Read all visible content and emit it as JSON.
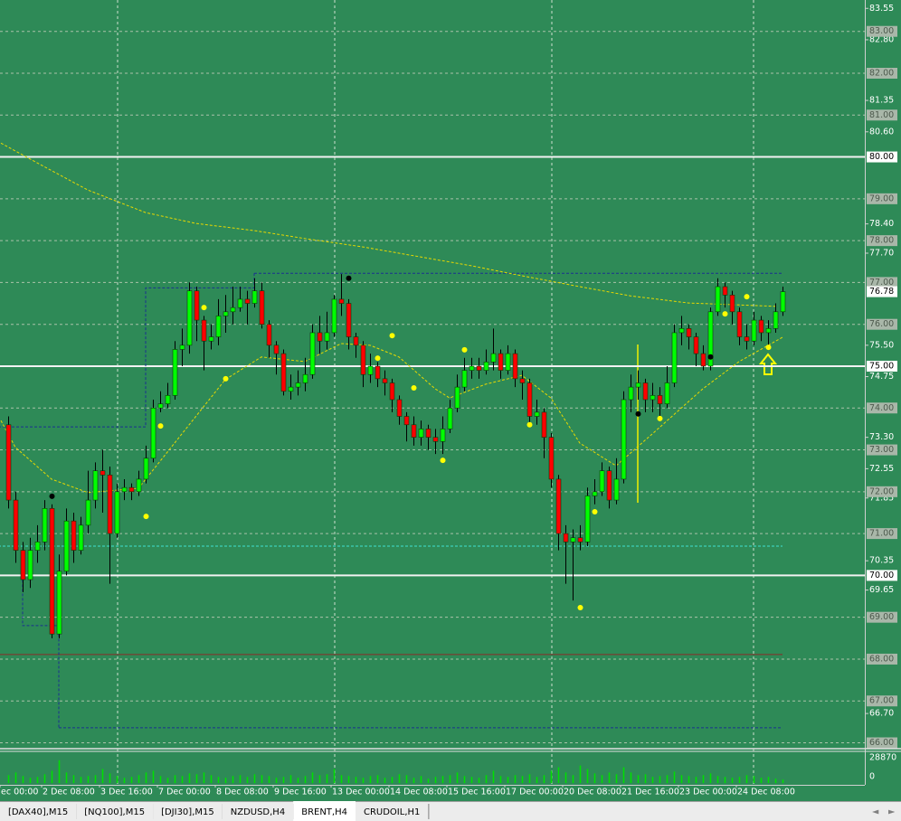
{
  "chart_data": {
    "type": "candlestick",
    "ylim": [
      65.86,
      83.75
    ],
    "yticks": [
      83.55,
      {
        "value": 82.8,
        "label": "82.80"
      },
      81.35,
      {
        "value": 80.6,
        "label": "80.60"
      },
      {
        "value": 78.4,
        "label": "78.40"
      },
      {
        "value": 77.7,
        "label": "77.70"
      },
      {
        "value": 75.5,
        "label": "75.50"
      },
      74.75,
      {
        "value": 73.3,
        "label": "73.30"
      },
      72.55,
      71.85,
      70.35,
      69.65,
      {
        "value": 66.7,
        "label": "66.70"
      }
    ],
    "level_lines": [
      {
        "value": 83,
        "label": "83.00"
      },
      {
        "value": 82,
        "label": "82.00"
      },
      {
        "value": 81,
        "label": "81.00"
      },
      {
        "value": 79,
        "label": "79.00"
      },
      {
        "value": 78,
        "label": "78.00"
      },
      {
        "value": 77,
        "label": "77.00"
      },
      {
        "value": 76,
        "label": "76.00"
      },
      {
        "value": 74,
        "label": "74.00"
      },
      {
        "value": 73,
        "label": "73.00"
      },
      {
        "value": 72,
        "label": "72.00"
      },
      {
        "value": 71,
        "label": "71.00"
      },
      {
        "value": 69,
        "label": "69.00"
      },
      {
        "value": 68,
        "label": "68.00"
      },
      {
        "value": 67,
        "label": "67.00"
      },
      {
        "value": 66,
        "label": "66.00"
      }
    ],
    "key_levels": [
      {
        "value": 80,
        "label": "80.00"
      },
      {
        "value": 75,
        "label": "75.00"
      },
      {
        "value": 70,
        "label": "70.00"
      }
    ],
    "current_price": 76.78,
    "colors": {
      "background": "#2e8a57",
      "bull": "#00ff00",
      "bear": "#ff0000",
      "wick": "#000000",
      "volume": "#00e000",
      "signal": "#ffff00",
      "signal_black": "#000000",
      "ma": "#e8d800",
      "step": "#1a3090"
    },
    "candles": [
      [
        73.6,
        73.8,
        71.6,
        71.8
      ],
      [
        71.8,
        72.0,
        70.3,
        70.6
      ],
      [
        70.6,
        70.8,
        69.6,
        69.9
      ],
      [
        69.9,
        70.9,
        69.7,
        70.6
      ],
      [
        70.6,
        71.2,
        70.3,
        70.8
      ],
      [
        70.8,
        71.8,
        70.6,
        71.6
      ],
      [
        71.6,
        71.7,
        68.5,
        68.6
      ],
      [
        68.6,
        70.5,
        68.5,
        70.1
      ],
      [
        70.1,
        71.6,
        70.0,
        71.3
      ],
      [
        71.3,
        71.5,
        70.3,
        70.6
      ],
      [
        70.6,
        71.4,
        70.5,
        71.2
      ],
      [
        71.2,
        72.5,
        71.0,
        71.8
      ],
      [
        71.8,
        72.7,
        71.6,
        72.5
      ],
      [
        72.5,
        73.0,
        71.5,
        72.4
      ],
      [
        72.4,
        72.6,
        69.8,
        71.0
      ],
      [
        71.0,
        72.2,
        70.9,
        72.0
      ],
      [
        72.0,
        72.3,
        71.8,
        72.1
      ],
      [
        72.1,
        72.2,
        71.8,
        72.0
      ],
      [
        72.0,
        72.5,
        71.9,
        72.3
      ],
      [
        72.3,
        73.1,
        72.2,
        72.8
      ],
      [
        72.8,
        74.2,
        72.7,
        74.0
      ],
      [
        74.0,
        74.4,
        73.9,
        74.1
      ],
      [
        74.1,
        74.6,
        74.0,
        74.3
      ],
      [
        74.3,
        75.6,
        74.2,
        75.4
      ],
      [
        75.4,
        75.9,
        75.0,
        75.5
      ],
      [
        75.5,
        77.0,
        75.3,
        76.8
      ],
      [
        76.8,
        76.9,
        75.6,
        76.1
      ],
      [
        76.1,
        76.2,
        74.9,
        75.6
      ],
      [
        75.6,
        76.0,
        75.4,
        75.7
      ],
      [
        75.7,
        76.6,
        75.5,
        76.2
      ],
      [
        76.2,
        76.7,
        75.8,
        76.3
      ],
      [
        76.3,
        76.9,
        76.0,
        76.4
      ],
      [
        76.4,
        76.9,
        76.3,
        76.6
      ],
      [
        76.6,
        76.8,
        76.0,
        76.5
      ],
      [
        76.5,
        77.1,
        76.4,
        76.8
      ],
      [
        76.8,
        77.0,
        75.9,
        76.0
      ],
      [
        76.0,
        76.1,
        75.2,
        75.5
      ],
      [
        75.5,
        75.6,
        74.8,
        75.3
      ],
      [
        75.3,
        75.4,
        74.3,
        74.4
      ],
      [
        74.4,
        74.8,
        74.2,
        74.5
      ],
      [
        74.5,
        74.9,
        74.3,
        74.6
      ],
      [
        74.6,
        75.2,
        74.4,
        74.8
      ],
      [
        74.8,
        76.0,
        74.7,
        75.8
      ],
      [
        75.8,
        76.2,
        75.3,
        75.6
      ],
      [
        75.6,
        76.3,
        75.4,
        75.8
      ],
      [
        75.8,
        76.7,
        75.7,
        76.6
      ],
      [
        76.6,
        77.2,
        76.2,
        76.5
      ],
      [
        76.5,
        76.6,
        75.4,
        75.7
      ],
      [
        75.7,
        75.8,
        75.2,
        75.5
      ],
      [
        75.5,
        75.6,
        74.5,
        74.8
      ],
      [
        74.8,
        75.3,
        74.6,
        75.0
      ],
      [
        75.0,
        75.1,
        74.5,
        74.7
      ],
      [
        74.7,
        74.9,
        74.3,
        74.6
      ],
      [
        74.6,
        74.7,
        73.9,
        74.2
      ],
      [
        74.2,
        74.3,
        73.6,
        73.8
      ],
      [
        73.8,
        73.9,
        73.2,
        73.6
      ],
      [
        73.6,
        73.8,
        73.1,
        73.3
      ],
      [
        73.3,
        73.7,
        73.1,
        73.5
      ],
      [
        73.5,
        73.6,
        73.0,
        73.3
      ],
      [
        73.3,
        73.5,
        72.9,
        73.2
      ],
      [
        73.2,
        73.8,
        72.9,
        73.5
      ],
      [
        73.5,
        74.2,
        73.4,
        74.0
      ],
      [
        74.0,
        74.8,
        73.9,
        74.5
      ],
      [
        74.5,
        75.2,
        74.4,
        74.9
      ],
      [
        74.9,
        75.2,
        74.7,
        75.0
      ],
      [
        75.0,
        75.2,
        74.7,
        74.9
      ],
      [
        74.9,
        75.4,
        74.8,
        75.1
      ],
      [
        75.1,
        75.9,
        74.9,
        75.3
      ],
      [
        75.3,
        75.4,
        74.7,
        74.9
      ],
      [
        74.9,
        75.5,
        74.8,
        75.3
      ],
      [
        75.3,
        75.4,
        74.5,
        74.7
      ],
      [
        74.7,
        74.9,
        74.2,
        74.6
      ],
      [
        74.6,
        74.7,
        73.6,
        73.8
      ],
      [
        73.8,
        74.2,
        73.6,
        73.9
      ],
      [
        73.9,
        74.0,
        72.8,
        73.3
      ],
      [
        73.3,
        73.4,
        72.1,
        72.3
      ],
      [
        72.3,
        72.4,
        70.6,
        71.0
      ],
      [
        71.0,
        71.2,
        69.8,
        70.8
      ],
      [
        70.8,
        71.1,
        69.4,
        70.9
      ],
      [
        70.9,
        71.2,
        70.6,
        70.8
      ],
      [
        70.8,
        72.1,
        70.7,
        71.9
      ],
      [
        71.9,
        72.3,
        71.7,
        72.0
      ],
      [
        72.0,
        72.7,
        71.9,
        72.5
      ],
      [
        72.5,
        72.6,
        71.6,
        71.8
      ],
      [
        71.8,
        72.8,
        71.7,
        72.3
      ],
      [
        72.3,
        74.4,
        72.2,
        74.2
      ],
      [
        74.2,
        74.8,
        73.9,
        74.5
      ],
      [
        74.5,
        74.9,
        74.2,
        74.6
      ],
      [
        74.6,
        74.7,
        73.9,
        74.2
      ],
      [
        74.2,
        74.6,
        73.9,
        74.3
      ],
      [
        74.3,
        74.5,
        73.8,
        74.1
      ],
      [
        74.1,
        75.0,
        74.0,
        74.6
      ],
      [
        74.6,
        76.0,
        74.5,
        75.8
      ],
      [
        75.8,
        76.2,
        75.5,
        75.9
      ],
      [
        75.9,
        76.0,
        75.4,
        75.7
      ],
      [
        75.7,
        75.8,
        75.0,
        75.3
      ],
      [
        75.3,
        75.5,
        74.9,
        75.0
      ],
      [
        75.0,
        76.4,
        74.9,
        76.3
      ],
      [
        76.3,
        77.1,
        76.2,
        76.9
      ],
      [
        76.9,
        77.0,
        76.4,
        76.7
      ],
      [
        76.7,
        76.8,
        76.0,
        76.3
      ],
      [
        76.3,
        76.4,
        75.5,
        75.7
      ],
      [
        75.7,
        76.0,
        75.4,
        75.6
      ],
      [
        75.6,
        76.3,
        75.5,
        76.1
      ],
      [
        76.1,
        76.2,
        75.6,
        75.8
      ],
      [
        75.8,
        76.1,
        75.5,
        75.9
      ],
      [
        75.9,
        76.5,
        75.8,
        76.3
      ],
      [
        76.3,
        76.9,
        76.2,
        76.78
      ]
    ],
    "xlabels": [
      "ec 00:00",
      "2 Dec 08:00",
      "3 Dec 16:00",
      "7 Dec 00:00",
      "8 Dec 08:00",
      "9 Dec 16:00",
      "13 Dec 00:00",
      "14 Dec 08:00",
      "15 Dec 16:00",
      "17 Dec 00:00",
      "20 Dec 08:00",
      "21 Dec 16:00",
      "23 Dec 00:00",
      "24 Dec 08:00"
    ],
    "ma_slow": {
      "x": [
        -1,
        4,
        11,
        19,
        26,
        34,
        41,
        49,
        56,
        64,
        71,
        79,
        86,
        94,
        106
      ],
      "values": [
        80.33,
        79.86,
        79.21,
        78.67,
        78.41,
        78.24,
        78.05,
        77.85,
        77.64,
        77.4,
        77.16,
        76.9,
        76.68,
        76.51,
        76.43
      ]
    },
    "ma_fast": {
      "x": [
        -1,
        1,
        6,
        11,
        18,
        24,
        30,
        35,
        41,
        46,
        50,
        54,
        59,
        61,
        66,
        71,
        75,
        79,
        84,
        89,
        96,
        101,
        107
      ],
      "values": [
        73.7,
        73.06,
        72.3,
        71.98,
        72.08,
        73.38,
        74.68,
        75.22,
        75.11,
        75.54,
        75.5,
        75.22,
        74.46,
        74.24,
        74.57,
        74.78,
        74.24,
        73.16,
        72.62,
        73.38,
        74.46,
        75.11,
        75.69
      ]
    },
    "signals_yellow": {
      "x": [
        19,
        21,
        27,
        30,
        51,
        53,
        56,
        60,
        63,
        72,
        79,
        81,
        90,
        99,
        102,
        105
      ],
      "values": [
        71.41,
        73.57,
        76.4,
        74.7,
        75.19,
        75.73,
        74.48,
        72.75,
        75.39,
        73.6,
        69.23,
        71.52,
        73.75,
        76.25,
        76.66,
        75.45
      ]
    },
    "signals_black": {
      "x": [
        6,
        47,
        87,
        97
      ],
      "values": [
        71.89,
        77.1,
        73.86,
        75.22
      ]
    },
    "hlines": [
      {
        "value": 68.11,
        "from": -2,
        "to": 107,
        "color": "#8b2a2a",
        "dash": false
      },
      {
        "value": 70.7,
        "from": -2,
        "to": 107,
        "color": "#40e0d0",
        "dash": true
      },
      {
        "value": 77.22,
        "from": 34,
        "to": 107,
        "color": "#1a3090",
        "dash": true
      },
      {
        "value": 66.36,
        "from": 7,
        "to": 107,
        "color": "#1a3090",
        "dash": true
      }
    ],
    "step_lines": [
      {
        "x": [
          -2,
          19,
          19,
          34,
          34
        ],
        "values": [
          73.55,
          73.55,
          76.87,
          76.87,
          77.22
        ]
      },
      {
        "x": [
          2,
          2,
          7,
          7
        ],
        "values": [
          70.0,
          68.8,
          68.8,
          66.36
        ]
      }
    ],
    "volume": {
      "ylim": [
        0,
        28870
      ],
      "yticks": [
        28870,
        0
      ],
      "values": [
        9000,
        12000,
        8000,
        6000,
        7000,
        10000,
        14000,
        26000,
        12000,
        9000,
        7000,
        8000,
        9000,
        16000,
        11000,
        8000,
        6000,
        7000,
        9000,
        12000,
        14000,
        8000,
        6000,
        9000,
        8000,
        11000,
        10000,
        12000,
        9000,
        7000,
        6000,
        8000,
        9000,
        7000,
        10000,
        9000,
        8000,
        6000,
        7000,
        9000,
        6000,
        8000,
        12000,
        9000,
        10000,
        16000,
        9000,
        8000,
        7000,
        6000,
        8000,
        9000,
        6000,
        7000,
        10000,
        9000,
        6000,
        8000,
        5000,
        7000,
        8000,
        9000,
        12000,
        8000,
        7000,
        6000,
        9000,
        14000,
        8000,
        7000,
        9000,
        8000,
        10000,
        7000,
        9000,
        14000,
        18000,
        12000,
        9000,
        20000,
        16000,
        11000,
        9000,
        12000,
        10000,
        18000,
        12000,
        9000,
        10000,
        7000,
        8000,
        9000,
        13000,
        9000,
        8000,
        7000,
        9000,
        11000,
        8000,
        7000,
        6000,
        7000,
        9000,
        8000,
        6000,
        7000,
        5000,
        4000
      ]
    }
  },
  "tabs": {
    "items": [
      "[DAX40],M15",
      "[NQ100],M15",
      "[DJI30],M15",
      "NZDUSD,H4",
      "BRENT,H4",
      "CRUDOIL,H1"
    ],
    "active": 4,
    "scroll": [
      "◄",
      "►"
    ]
  }
}
